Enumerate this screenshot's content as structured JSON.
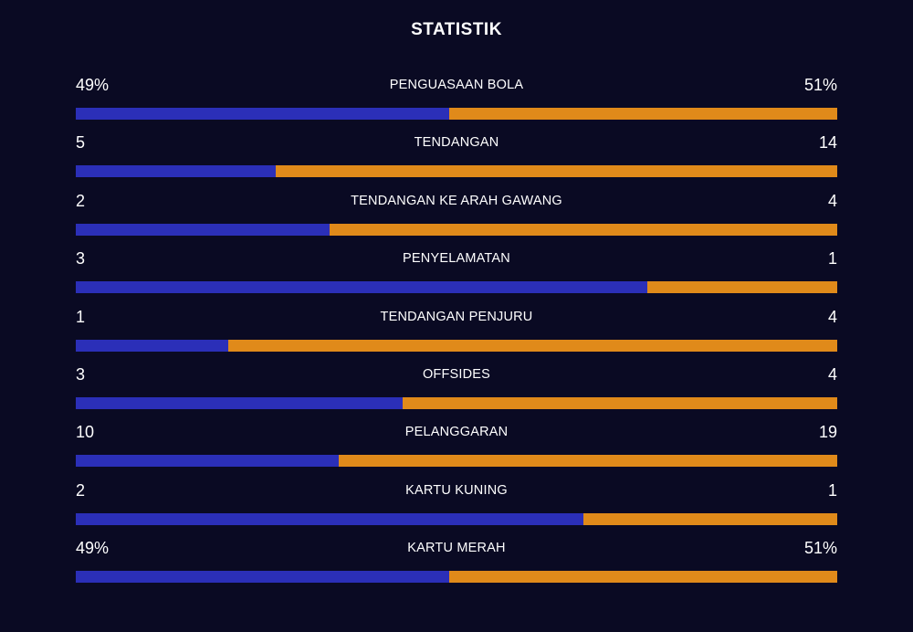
{
  "title": "STATISTIK",
  "colors": {
    "background": "#0a0a23",
    "home": "#2b2fb8",
    "away": "#e08a1a"
  },
  "stats": [
    {
      "label": "PENGUASAAN BOLA",
      "home": "49%",
      "away": "51%",
      "home_share": 0.49
    },
    {
      "label": "TENDANGAN",
      "home": "5",
      "away": "14",
      "home_share": 0.263
    },
    {
      "label": "TENDANGAN KE ARAH GAWANG",
      "home": "2",
      "away": "4",
      "home_share": 0.333
    },
    {
      "label": "PENYELAMATAN",
      "home": "3",
      "away": "1",
      "home_share": 0.75
    },
    {
      "label": "TENDANGAN PENJURU",
      "home": "1",
      "away": "4",
      "home_share": 0.2
    },
    {
      "label": "OFFSIDES",
      "home": "3",
      "away": "4",
      "home_share": 0.429
    },
    {
      "label": "PELANGGARAN",
      "home": "10",
      "away": "19",
      "home_share": 0.345
    },
    {
      "label": "KARTU KUNING",
      "home": "2",
      "away": "1",
      "home_share": 0.667
    },
    {
      "label": "KARTU MERAH",
      "home": "49%",
      "away": "51%",
      "home_share": 0.49
    }
  ]
}
